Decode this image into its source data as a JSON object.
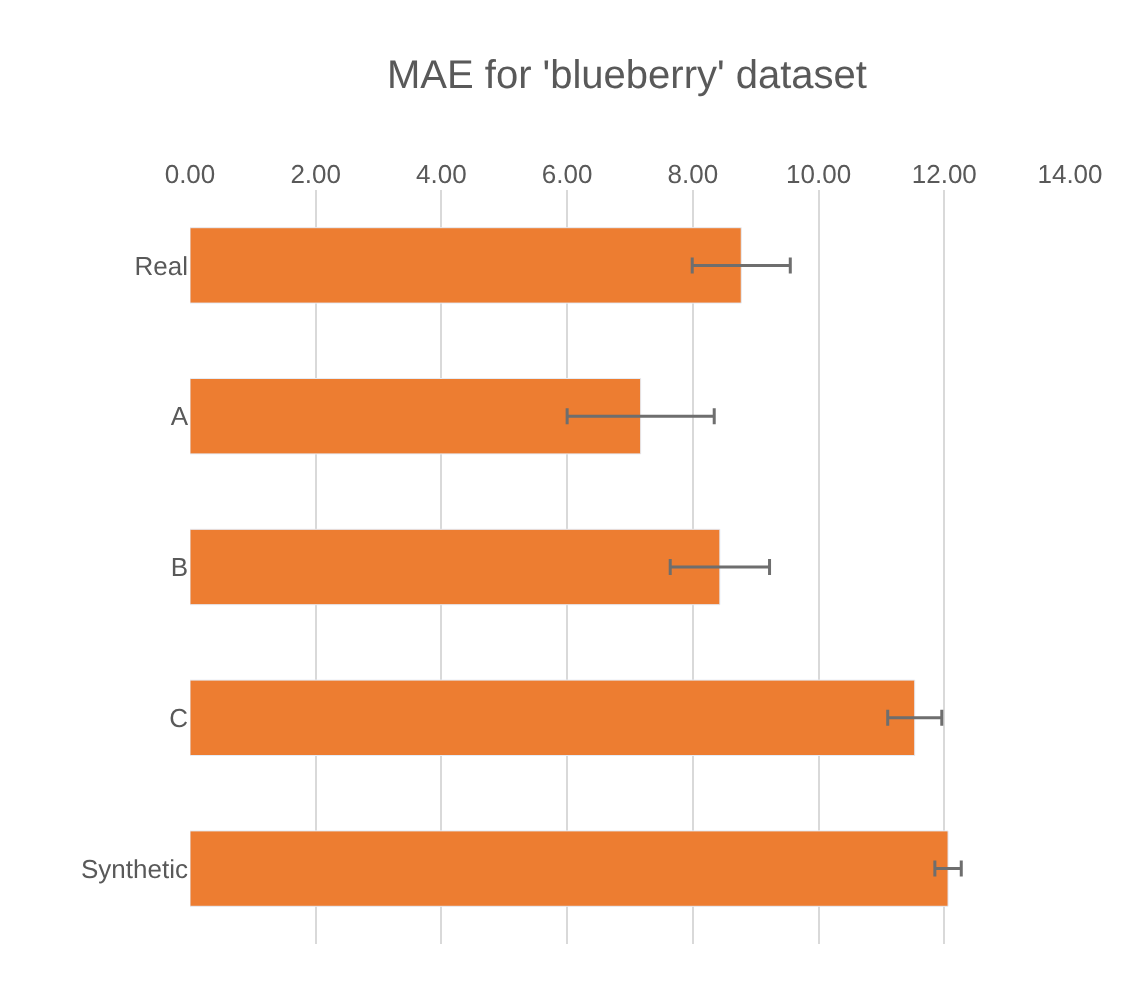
{
  "chart_data": {
    "type": "bar",
    "orientation": "horizontal",
    "title": "MAE for 'blueberry' dataset",
    "categories": [
      "Real",
      "A",
      "B",
      "C",
      "Synthetic"
    ],
    "values": [
      8.77,
      7.17,
      8.43,
      11.53,
      12.06
    ],
    "errors": [
      0.78,
      1.17,
      0.79,
      0.43,
      0.21
    ],
    "color": "#ed7d31",
    "xlim": [
      0,
      14
    ],
    "xticks": [
      {
        "value": 0,
        "label": "0.00"
      },
      {
        "value": 2,
        "label": "2.00"
      },
      {
        "value": 4,
        "label": "4.00"
      },
      {
        "value": 6,
        "label": "6.00"
      },
      {
        "value": 8,
        "label": "8.00"
      },
      {
        "value": 10,
        "label": "10.00"
      },
      {
        "value": 12,
        "label": "12.00"
      },
      {
        "value": 14,
        "label": "14.00"
      }
    ],
    "grid": "x"
  }
}
